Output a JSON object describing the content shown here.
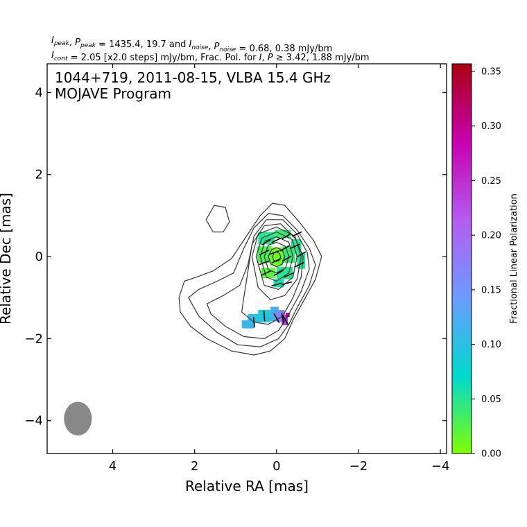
{
  "chart_data": {
    "type": "heatmap",
    "header_line1": {
      "parts": [
        {
          "t": "I",
          "it": true
        },
        {
          "t": "peak",
          "it": true,
          "sub": true
        },
        {
          "t": ", "
        },
        {
          "t": "P",
          "it": true
        },
        {
          "t": "peak",
          "it": true,
          "sub": true
        },
        {
          "t": " = 1435.4, 19.7 and "
        },
        {
          "t": "I",
          "it": true
        },
        {
          "t": "noise",
          "it": true,
          "sub": true
        },
        {
          "t": ", "
        },
        {
          "t": "P",
          "it": true
        },
        {
          "t": "noise",
          "it": true,
          "sub": true
        },
        {
          "t": " = 0.68, 0.38 mJy/bm"
        }
      ]
    },
    "header_line2": {
      "parts": [
        {
          "t": "I",
          "it": true
        },
        {
          "t": "cont",
          "it": true,
          "sub": true
        },
        {
          "t": " = 2.05 [x2.0 steps] mJy/bm, Frac. Pol. for "
        },
        {
          "t": "I",
          "it": true
        },
        {
          "t": ", "
        },
        {
          "t": "P",
          "it": true
        },
        {
          "t": " ≥  3.42, 1.88 mJy/bm"
        }
      ]
    },
    "title_line1": "1044+719, 2011-08-15, VLBA 15.4 GHz",
    "title_line2": "MOJAVE Program",
    "xlabel": "Relative RA [mas]",
    "ylabel": "Relative Dec [mas]",
    "xlim": [
      5.6,
      -4.15
    ],
    "ylim": [
      -4.8,
      4.7
    ],
    "xticks": [
      4,
      2,
      0,
      -2,
      -4
    ],
    "xtick_labels": [
      "4",
      "2",
      "0",
      "−2",
      "−4"
    ],
    "yticks": [
      -4,
      -2,
      0,
      2,
      4
    ],
    "ytick_labels": [
      "−4",
      "−2",
      "0",
      "2",
      "4"
    ],
    "colorbar": {
      "label": "Fractional Linear Polarization",
      "range": [
        0,
        0.357
      ],
      "ticks": [
        0.0,
        0.05,
        0.1,
        0.15,
        0.2,
        0.25,
        0.3,
        0.35
      ],
      "tick_labels": [
        "0.00",
        "0.05",
        "0.10",
        "0.15",
        "0.20",
        "0.25",
        "0.30",
        "0.35"
      ],
      "colors": [
        "#7fff00",
        "#00d8d0",
        "#6b9bff",
        "#b55cf0",
        "#c800b0",
        "#aa0010"
      ]
    },
    "contour_color": "#333333",
    "contours": [
      {
        "level": 1,
        "pts": [
          [
            2.38,
            -1.0
          ],
          [
            2.25,
            -0.6
          ],
          [
            1.95,
            -0.5
          ],
          [
            1.55,
            -0.35
          ],
          [
            1.1,
            -0.05
          ],
          [
            0.7,
            0.55
          ],
          [
            0.4,
            1.0
          ],
          [
            0.1,
            1.3
          ],
          [
            -0.2,
            1.25
          ],
          [
            -0.55,
            0.85
          ],
          [
            -0.9,
            0.4
          ],
          [
            -1.1,
            0.0
          ],
          [
            -0.95,
            -0.55
          ],
          [
            -0.65,
            -1.1
          ],
          [
            -0.4,
            -1.55
          ],
          [
            -0.2,
            -2.0
          ],
          [
            0.15,
            -2.3
          ],
          [
            0.55,
            -2.4
          ],
          [
            1.1,
            -2.3
          ],
          [
            1.7,
            -2.0
          ],
          [
            2.1,
            -1.7
          ],
          [
            2.35,
            -1.35
          ],
          [
            2.38,
            -1.0
          ]
        ]
      },
      {
        "level": 2,
        "pts": [
          [
            2.15,
            -1.0
          ],
          [
            1.9,
            -0.8
          ],
          [
            1.45,
            -0.6
          ],
          [
            1.05,
            -0.4
          ],
          [
            0.8,
            0.2
          ],
          [
            0.55,
            0.7
          ],
          [
            0.2,
            1.05
          ],
          [
            -0.15,
            1.0
          ],
          [
            -0.5,
            0.65
          ],
          [
            -0.8,
            0.2
          ],
          [
            -0.95,
            -0.2
          ],
          [
            -0.8,
            -0.7
          ],
          [
            -0.5,
            -1.25
          ],
          [
            -0.3,
            -1.65
          ],
          [
            -0.05,
            -2.0
          ],
          [
            0.4,
            -2.2
          ],
          [
            0.95,
            -2.15
          ],
          [
            1.45,
            -1.85
          ],
          [
            1.9,
            -1.45
          ],
          [
            2.15,
            -1.0
          ]
        ]
      },
      {
        "level": 3,
        "pts": [
          [
            1.7,
            -1.15
          ],
          [
            1.3,
            -0.95
          ],
          [
            0.9,
            -0.7
          ],
          [
            0.7,
            -0.2
          ],
          [
            0.55,
            0.5
          ],
          [
            0.25,
            0.9
          ],
          [
            -0.15,
            0.9
          ],
          [
            -0.5,
            0.55
          ],
          [
            -0.75,
            0.1
          ],
          [
            -0.8,
            -0.3
          ],
          [
            -0.6,
            -0.85
          ],
          [
            -0.3,
            -1.4
          ],
          [
            -0.05,
            -1.8
          ],
          [
            0.3,
            -2.0
          ],
          [
            0.8,
            -1.95
          ],
          [
            1.25,
            -1.7
          ],
          [
            1.6,
            -1.4
          ],
          [
            1.7,
            -1.15
          ]
        ]
      },
      {
        "level": 4,
        "pts": [
          [
            0.85,
            -1.35
          ],
          [
            0.8,
            -1.0
          ],
          [
            0.72,
            -0.5
          ],
          [
            0.6,
            0.3
          ],
          [
            0.3,
            0.75
          ],
          [
            -0.1,
            0.8
          ],
          [
            -0.45,
            0.45
          ],
          [
            -0.65,
            0.0
          ],
          [
            -0.6,
            -0.5
          ],
          [
            -0.4,
            -1.0
          ],
          [
            -0.15,
            -1.45
          ],
          [
            0.2,
            -1.65
          ],
          [
            0.55,
            -1.6
          ],
          [
            0.85,
            -1.35
          ]
        ]
      },
      {
        "level": 5,
        "pts": [
          [
            0.6,
            0.0
          ],
          [
            0.45,
            0.55
          ],
          [
            0.0,
            0.72
          ],
          [
            -0.45,
            0.5
          ],
          [
            -0.6,
            0.0
          ],
          [
            -0.5,
            -0.55
          ],
          [
            -0.2,
            -0.95
          ],
          [
            0.15,
            -1.05
          ],
          [
            0.45,
            -0.75
          ],
          [
            0.6,
            0.0
          ]
        ]
      },
      {
        "level": 6,
        "pts": [
          [
            0.5,
            0.0
          ],
          [
            0.36,
            0.45
          ],
          [
            0.0,
            0.6
          ],
          [
            -0.38,
            0.42
          ],
          [
            -0.5,
            0.0
          ],
          [
            -0.4,
            -0.5
          ],
          [
            -0.05,
            -0.8
          ],
          [
            0.3,
            -0.7
          ],
          [
            0.5,
            0.0
          ]
        ]
      },
      {
        "level": 7,
        "pts": [
          [
            0.4,
            0.0
          ],
          [
            0.28,
            0.38
          ],
          [
            0.0,
            0.48
          ],
          [
            -0.3,
            0.35
          ],
          [
            -0.4,
            0.0
          ],
          [
            -0.3,
            -0.4
          ],
          [
            0.0,
            -0.6
          ],
          [
            0.25,
            -0.5
          ],
          [
            0.4,
            0.0
          ]
        ]
      },
      {
        "level": 8,
        "pts": [
          [
            0.3,
            0.0
          ],
          [
            0.2,
            0.28
          ],
          [
            0.0,
            0.35
          ],
          [
            -0.22,
            0.25
          ],
          [
            -0.3,
            0.0
          ],
          [
            -0.22,
            -0.28
          ],
          [
            0.0,
            -0.4
          ],
          [
            0.2,
            -0.32
          ],
          [
            0.3,
            0.0
          ]
        ]
      },
      {
        "level": 9,
        "pts": [
          [
            0.2,
            0.0
          ],
          [
            0.12,
            0.17
          ],
          [
            0.0,
            0.22
          ],
          [
            -0.14,
            0.16
          ],
          [
            -0.2,
            0.0
          ],
          [
            -0.14,
            -0.18
          ],
          [
            0.0,
            -0.25
          ],
          [
            0.14,
            -0.18
          ],
          [
            0.2,
            0.0
          ]
        ]
      },
      {
        "level": 10,
        "pts": [
          [
            0.1,
            0.0
          ],
          [
            0.06,
            0.09
          ],
          [
            0.0,
            0.11
          ],
          [
            -0.07,
            0.08
          ],
          [
            -0.1,
            0.0
          ],
          [
            -0.07,
            -0.09
          ],
          [
            0.0,
            -0.12
          ],
          [
            0.07,
            -0.09
          ],
          [
            0.1,
            0.0
          ]
        ]
      },
      {
        "level": 1,
        "pts": [
          [
            1.72,
            0.9
          ],
          [
            1.52,
            1.25
          ],
          [
            1.25,
            1.2
          ],
          [
            1.15,
            0.85
          ],
          [
            1.3,
            0.6
          ],
          [
            1.55,
            0.6
          ],
          [
            1.72,
            0.9
          ]
        ]
      }
    ],
    "fracpol_cells": [
      {
        "ra": 0.25,
        "dec": 0.45,
        "w": 0.4,
        "h": 0.3,
        "fp": 0.05
      },
      {
        "ra": -0.15,
        "dec": 0.55,
        "w": 0.4,
        "h": 0.2,
        "fp": 0.04
      },
      {
        "ra": -0.48,
        "dec": 0.25,
        "w": 0.25,
        "h": 0.35,
        "fp": 0.05
      },
      {
        "ra": 0.3,
        "dec": 0.05,
        "w": 0.35,
        "h": 0.4,
        "fp": 0.03
      },
      {
        "ra": 0.0,
        "dec": 0.0,
        "w": 0.3,
        "h": 0.45,
        "fp": 0.01
      },
      {
        "ra": -0.3,
        "dec": 0.05,
        "w": 0.3,
        "h": 0.4,
        "fp": 0.04
      },
      {
        "ra": -0.6,
        "dec": -0.1,
        "w": 0.2,
        "h": 0.4,
        "fp": 0.05
      },
      {
        "ra": 0.2,
        "dec": -0.4,
        "w": 0.35,
        "h": 0.25,
        "fp": 0.02
      },
      {
        "ra": -0.2,
        "dec": -0.4,
        "w": 0.4,
        "h": 0.3,
        "fp": 0.05
      },
      {
        "ra": -0.05,
        "dec": -0.65,
        "w": 0.25,
        "h": 0.2,
        "fp": 0.06
      },
      {
        "ra": 0.7,
        "dec": -1.65,
        "w": 0.3,
        "h": 0.2,
        "fp": 0.11
      },
      {
        "ra": 0.55,
        "dec": -1.5,
        "w": 0.3,
        "h": 0.2,
        "fp": 0.1
      },
      {
        "ra": 0.3,
        "dec": -1.45,
        "w": 0.3,
        "h": 0.3,
        "fp": 0.09
      },
      {
        "ra": 0.05,
        "dec": -1.4,
        "w": 0.2,
        "h": 0.35,
        "fp": 0.12
      },
      {
        "ra": -0.1,
        "dec": -1.45,
        "w": 0.2,
        "h": 0.3,
        "fp": 0.17
      },
      {
        "ra": -0.2,
        "dec": -1.55,
        "w": 0.15,
        "h": 0.25,
        "fp": 0.24
      },
      {
        "ra": -0.27,
        "dec": -1.42,
        "w": 0.1,
        "h": 0.1,
        "fp": 0.3
      }
    ],
    "evpa_ticks": [
      {
        "ra": 0.25,
        "dec": 0.35,
        "pa": 120
      },
      {
        "ra": 0.0,
        "dec": 0.4,
        "pa": 115
      },
      {
        "ra": -0.25,
        "dec": 0.5,
        "pa": 120
      },
      {
        "ra": -0.5,
        "dec": 0.55,
        "pa": 115
      },
      {
        "ra": 0.3,
        "dec": 0.1,
        "pa": 115
      },
      {
        "ra": 0.05,
        "dec": 0.1,
        "pa": 110
      },
      {
        "ra": -0.2,
        "dec": 0.2,
        "pa": 120
      },
      {
        "ra": -0.45,
        "dec": 0.25,
        "pa": 115
      },
      {
        "ra": -0.6,
        "dec": 0.05,
        "pa": 120
      },
      {
        "ra": 0.3,
        "dec": -0.15,
        "pa": 110
      },
      {
        "ra": 0.0,
        "dec": -0.1,
        "pa": 115
      },
      {
        "ra": -0.25,
        "dec": -0.05,
        "pa": 120
      },
      {
        "ra": -0.55,
        "dec": -0.2,
        "pa": 115
      },
      {
        "ra": 0.25,
        "dec": -0.4,
        "pa": 115
      },
      {
        "ra": -0.05,
        "dec": -0.4,
        "pa": 120
      },
      {
        "ra": -0.3,
        "dec": -0.45,
        "pa": 115
      },
      {
        "ra": 0.0,
        "dec": -0.68,
        "pa": 105
      },
      {
        "ra": -0.25,
        "dec": -0.65,
        "pa": 105
      },
      {
        "ra": 0.55,
        "dec": -1.6,
        "pa": 5
      },
      {
        "ra": 0.3,
        "dec": -1.45,
        "pa": 5
      },
      {
        "ra": 0.0,
        "dec": -1.5,
        "pa": 30
      },
      {
        "ra": -0.15,
        "dec": -1.5,
        "pa": 10
      },
      {
        "ra": -0.22,
        "dec": -1.55,
        "pa": 30
      }
    ],
    "beam": {
      "ra": 4.85,
      "dec": -3.95,
      "major_mas": 0.82,
      "minor_mas": 0.68,
      "pa_deg": 0,
      "color": "#888888"
    }
  }
}
